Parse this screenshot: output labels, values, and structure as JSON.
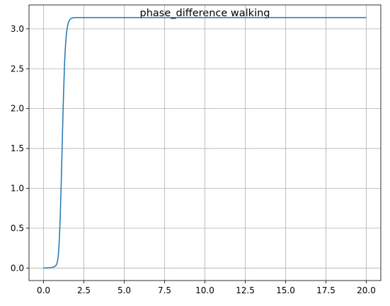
{
  "chart_data": {
    "type": "line",
    "title": "phase_difference walking",
    "xlabel": "",
    "ylabel": "",
    "xlim": [
      -0.9,
      20.9
    ],
    "ylim": [
      -0.157,
      3.3
    ],
    "xticks": [
      0.0,
      2.5,
      5.0,
      7.5,
      10.0,
      12.5,
      15.0,
      17.5,
      20.0
    ],
    "xtick_labels": [
      "0.0",
      "2.5",
      "5.0",
      "7.5",
      "10.0",
      "12.5",
      "15.0",
      "17.5",
      "20.0"
    ],
    "yticks": [
      0.0,
      0.5,
      1.0,
      1.5,
      2.0,
      2.5,
      3.0
    ],
    "ytick_labels": [
      "0.0",
      "0.5",
      "1.0",
      "1.5",
      "2.0",
      "2.5",
      "3.0"
    ],
    "grid": true,
    "series": [
      {
        "color": "#1f77b4",
        "x": [
          0.0,
          0.5,
          0.7,
          0.8,
          0.85,
          0.9,
          0.95,
          1.0,
          1.05,
          1.1,
          1.15,
          1.2,
          1.25,
          1.3,
          1.35,
          1.4,
          1.45,
          1.5,
          1.55,
          1.6,
          1.65,
          1.7,
          1.8,
          1.9,
          2.0,
          2.2,
          2.5,
          3.0,
          5.0,
          10.0,
          15.0,
          20.0
        ],
        "y": [
          0.0,
          0.005,
          0.02,
          0.04,
          0.07,
          0.13,
          0.25,
          0.45,
          0.75,
          1.1,
          1.5,
          1.9,
          2.25,
          2.55,
          2.76,
          2.9,
          2.99,
          3.05,
          3.085,
          3.105,
          3.12,
          3.13,
          3.137,
          3.14,
          3.141,
          3.1415,
          3.1416,
          3.1416,
          3.1416,
          3.1416,
          3.1416,
          3.1416
        ]
      }
    ]
  }
}
